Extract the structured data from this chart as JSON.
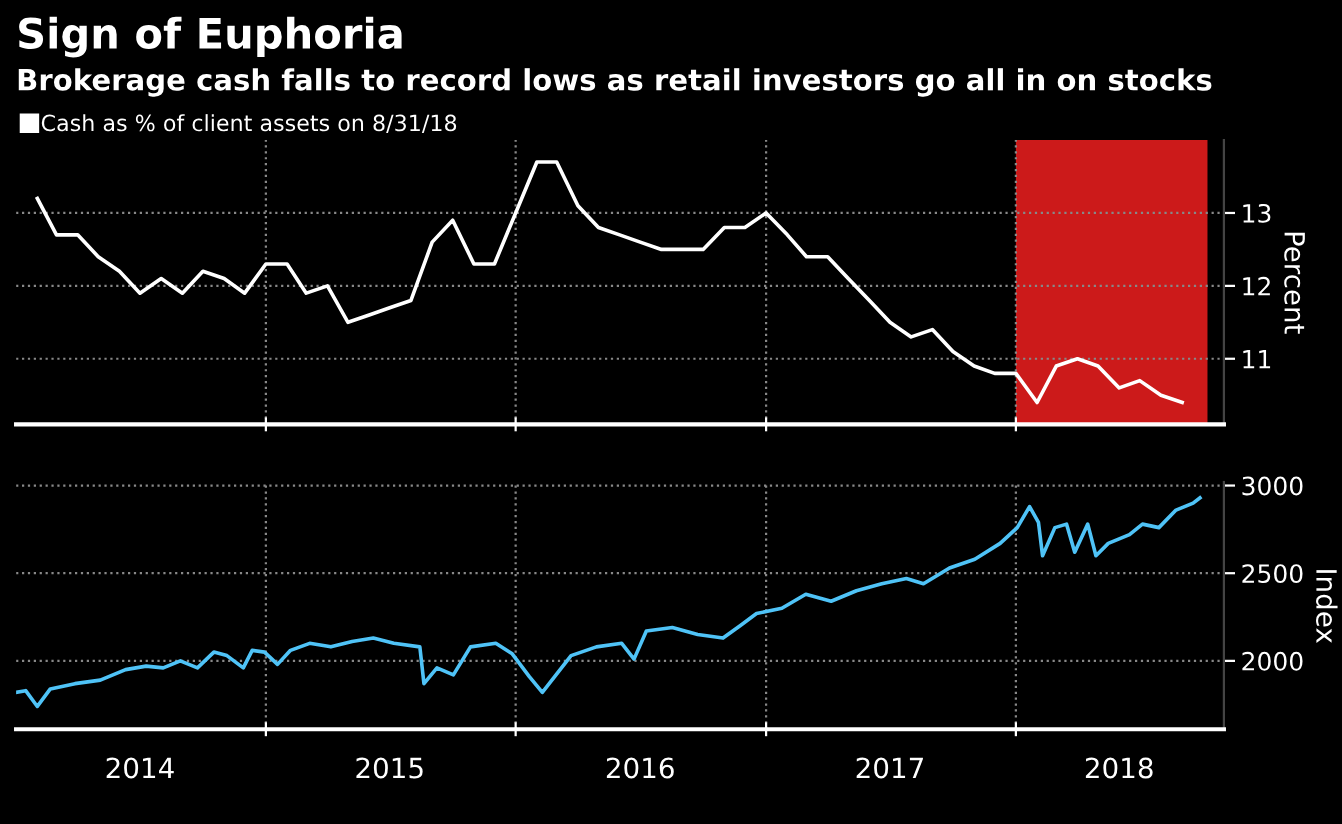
{
  "chart_data": [
    {
      "type": "line",
      "title": "Sign of Euphoria",
      "subtitle": "Brokerage cash falls to record lows as retail investors go all in on stocks",
      "ylabel": "Percent",
      "x": [
        "2014-02",
        "2014-03",
        "2014-04",
        "2014-05",
        "2014-06",
        "2014-07",
        "2014-08",
        "2014-09",
        "2014-10",
        "2014-11",
        "2014-12",
        "2015-01",
        "2015-02",
        "2015-03",
        "2015-04",
        "2015-05",
        "2015-06",
        "2015-07",
        "2015-08",
        "2015-09",
        "2015-10",
        "2015-11",
        "2015-12",
        "2016-01",
        "2016-02",
        "2016-03",
        "2016-04",
        "2016-05",
        "2016-06",
        "2016-07",
        "2016-08",
        "2016-09",
        "2016-10",
        "2016-11",
        "2016-12",
        "2017-01",
        "2017-02",
        "2017-03",
        "2017-04",
        "2017-05",
        "2017-06",
        "2017-07",
        "2017-08",
        "2017-09",
        "2017-10",
        "2017-11",
        "2017-12",
        "2018-01",
        "2018-02",
        "2018-03",
        "2018-04",
        "2018-05",
        "2018-06",
        "2018-07",
        "2018-08",
        "2018-09"
      ],
      "series": [
        {
          "name": "Cash as % of client assets on 8/31/18",
          "color": "#ffffff",
          "values": [
            13.2,
            12.7,
            12.7,
            12.4,
            12.2,
            11.9,
            12.1,
            11.9,
            12.2,
            12.1,
            11.9,
            12.3,
            12.3,
            11.9,
            12.0,
            11.5,
            11.6,
            11.7,
            11.8,
            12.6,
            12.9,
            12.3,
            12.3,
            13.0,
            13.7,
            13.7,
            13.1,
            12.8,
            12.7,
            12.6,
            12.5,
            12.5,
            12.5,
            12.8,
            12.8,
            13.0,
            12.7,
            12.4,
            12.4,
            12.1,
            11.8,
            11.5,
            11.3,
            11.4,
            11.1,
            10.9,
            10.8,
            10.8,
            10.4,
            10.9,
            11.0,
            10.9,
            10.6,
            10.7,
            10.5,
            10.4
          ]
        }
      ],
      "bands": [
        {
          "axis": "x",
          "from": "2018-01-01",
          "to": "2018-10-08",
          "color": "#cc1a1a"
        }
      ],
      "xlim": [
        "2014-01-01",
        "2018-11-01"
      ],
      "xticks": [
        {
          "value": "2015-01-01",
          "label": null
        },
        {
          "value": "2016-01-01",
          "label": null
        },
        {
          "value": "2017-01-01",
          "label": null
        },
        {
          "value": "2018-01-01",
          "label": null
        }
      ],
      "ylim": [
        10.1,
        14.0
      ],
      "yticks": [
        11,
        12,
        13
      ],
      "tick_labels": "y",
      "grid": true,
      "legend": "top left",
      "line_style": "solid",
      "marker": "none"
    },
    {
      "type": "line",
      "ylabel": "Index",
      "x": [
        "2014-01-01",
        "2014-01-15",
        "2014-02-01",
        "2014-02-20",
        "2014-03-28",
        "2014-05-04",
        "2014-06-10",
        "2014-07-10",
        "2014-08-04",
        "2014-08-29",
        "2014-09-23",
        "2014-10-17",
        "2014-11-05",
        "2014-11-29",
        "2014-12-12",
        "2014-12-30",
        "2015-01-18",
        "2015-02-06",
        "2015-03-06",
        "2015-04-06",
        "2015-05-07",
        "2015-06-07",
        "2015-07-07",
        "2015-08-14",
        "2015-08-20",
        "2015-09-08",
        "2015-10-02",
        "2015-10-27",
        "2015-12-03",
        "2015-12-27",
        "2016-01-21",
        "2016-02-09",
        "2016-02-27",
        "2016-03-22",
        "2016-04-28",
        "2016-06-04",
        "2016-06-22",
        "2016-07-10",
        "2016-08-17",
        "2016-09-23",
        "2016-10-30",
        "2016-11-24",
        "2016-12-18",
        "2017-01-24",
        "2017-02-28",
        "2017-04-06",
        "2017-05-13",
        "2017-06-19",
        "2017-07-25",
        "2017-08-19",
        "2017-09-26",
        "2017-11-02",
        "2017-12-09",
        "2018-01-03",
        "2018-01-21",
        "2018-02-03",
        "2018-02-09",
        "2018-02-27",
        "2018-03-16",
        "2018-03-28",
        "2018-04-16",
        "2018-04-28",
        "2018-05-16",
        "2018-06-16",
        "2018-07-05",
        "2018-07-29",
        "2018-08-23",
        "2018-09-17",
        "2018-09-27"
      ],
      "series": [
        {
          "color": "#4fc3f7",
          "values": [
            1820,
            1830,
            1740,
            1840,
            1870,
            1890,
            1950,
            1970,
            1960,
            2000,
            1960,
            2050,
            2030,
            1960,
            2060,
            2050,
            1980,
            2060,
            2100,
            2080,
            2110,
            2130,
            2100,
            2080,
            1870,
            1960,
            1920,
            2080,
            2100,
            2040,
            1910,
            1820,
            1910,
            2030,
            2080,
            2100,
            2010,
            2170,
            2190,
            2150,
            2130,
            2200,
            2270,
            2300,
            2380,
            2340,
            2400,
            2440,
            2470,
            2440,
            2530,
            2580,
            2670,
            2760,
            2880,
            2790,
            2600,
            2760,
            2780,
            2620,
            2780,
            2600,
            2670,
            2720,
            2780,
            2760,
            2860,
            2900,
            2930
          ]
        }
      ],
      "xlim": [
        "2014-01-01",
        "2018-11-01"
      ],
      "xticks": [
        {
          "value": "2014-07-01",
          "label": "2014"
        },
        {
          "value": "2015-01-01",
          "label": null
        },
        {
          "value": "2015-07-01",
          "label": "2015"
        },
        {
          "value": "2016-01-01",
          "label": null
        },
        {
          "value": "2016-07-01",
          "label": "2016"
        },
        {
          "value": "2017-01-01",
          "label": null
        },
        {
          "value": "2017-07-01",
          "label": "2017"
        },
        {
          "value": "2018-01-01",
          "label": null
        },
        {
          "value": "2018-06-01",
          "label": "2018"
        }
      ],
      "ylim": [
        1610,
        3020
      ],
      "yticks": [
        2000,
        2500,
        3000
      ],
      "grid": true,
      "line_style": "solid",
      "marker": "none"
    }
  ]
}
